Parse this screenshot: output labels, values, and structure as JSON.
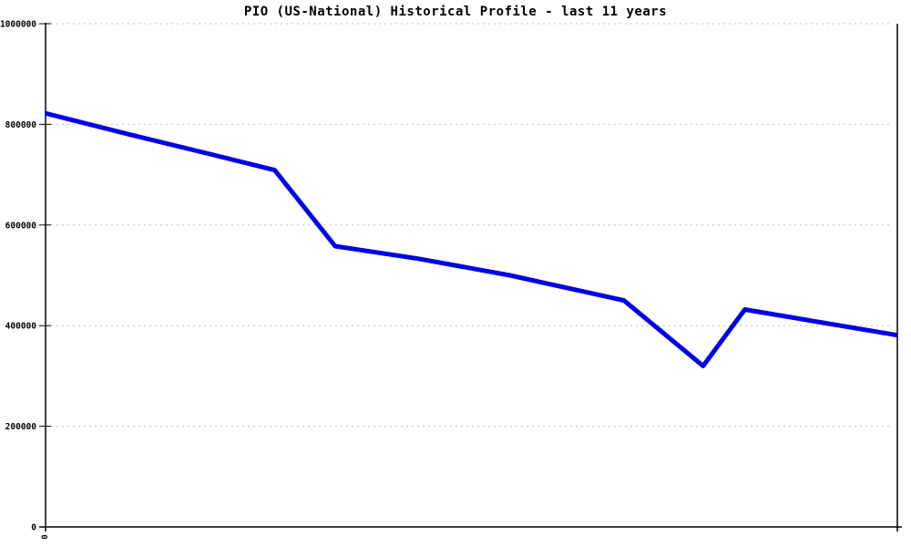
{
  "chart_data": {
    "type": "line",
    "title": "PIO (US-National) Historical Profile - last 11 years",
    "legend": "none",
    "background_color": "#ffffff",
    "grid": {
      "horizontal": true,
      "style": "dashed",
      "color": "#c0c0c0"
    },
    "axes_color": "#000000",
    "y_axis": {
      "min": 0,
      "max": 1000000,
      "ticks": [
        1000000,
        800000,
        600000,
        400000,
        200000,
        0
      ],
      "tick_labels": [
        "1000000",
        "800000",
        "600000",
        "400000",
        "200000",
        "0"
      ]
    },
    "x_axis": {
      "tick_labels": [
        "0"
      ],
      "tick_label_rotated": true
    },
    "series": [
      {
        "name": "PIO (US-National)",
        "color": "#0000e6",
        "stroke_width": 5,
        "points": [
          {
            "x_frac": 0.0,
            "value": 822000
          },
          {
            "x_frac": 0.096,
            "value": 781000
          },
          {
            "x_frac": 0.193,
            "value": 741000
          },
          {
            "x_frac": 0.269,
            "value": 709000
          },
          {
            "x_frac": 0.34,
            "value": 558000
          },
          {
            "x_frac": 0.438,
            "value": 533000
          },
          {
            "x_frac": 0.545,
            "value": 500000
          },
          {
            "x_frac": 0.679,
            "value": 450000
          },
          {
            "x_frac": 0.772,
            "value": 320000
          },
          {
            "x_frac": 0.821,
            "value": 432000
          },
          {
            "x_frac": 1.0,
            "value": 381000
          }
        ]
      }
    ]
  }
}
